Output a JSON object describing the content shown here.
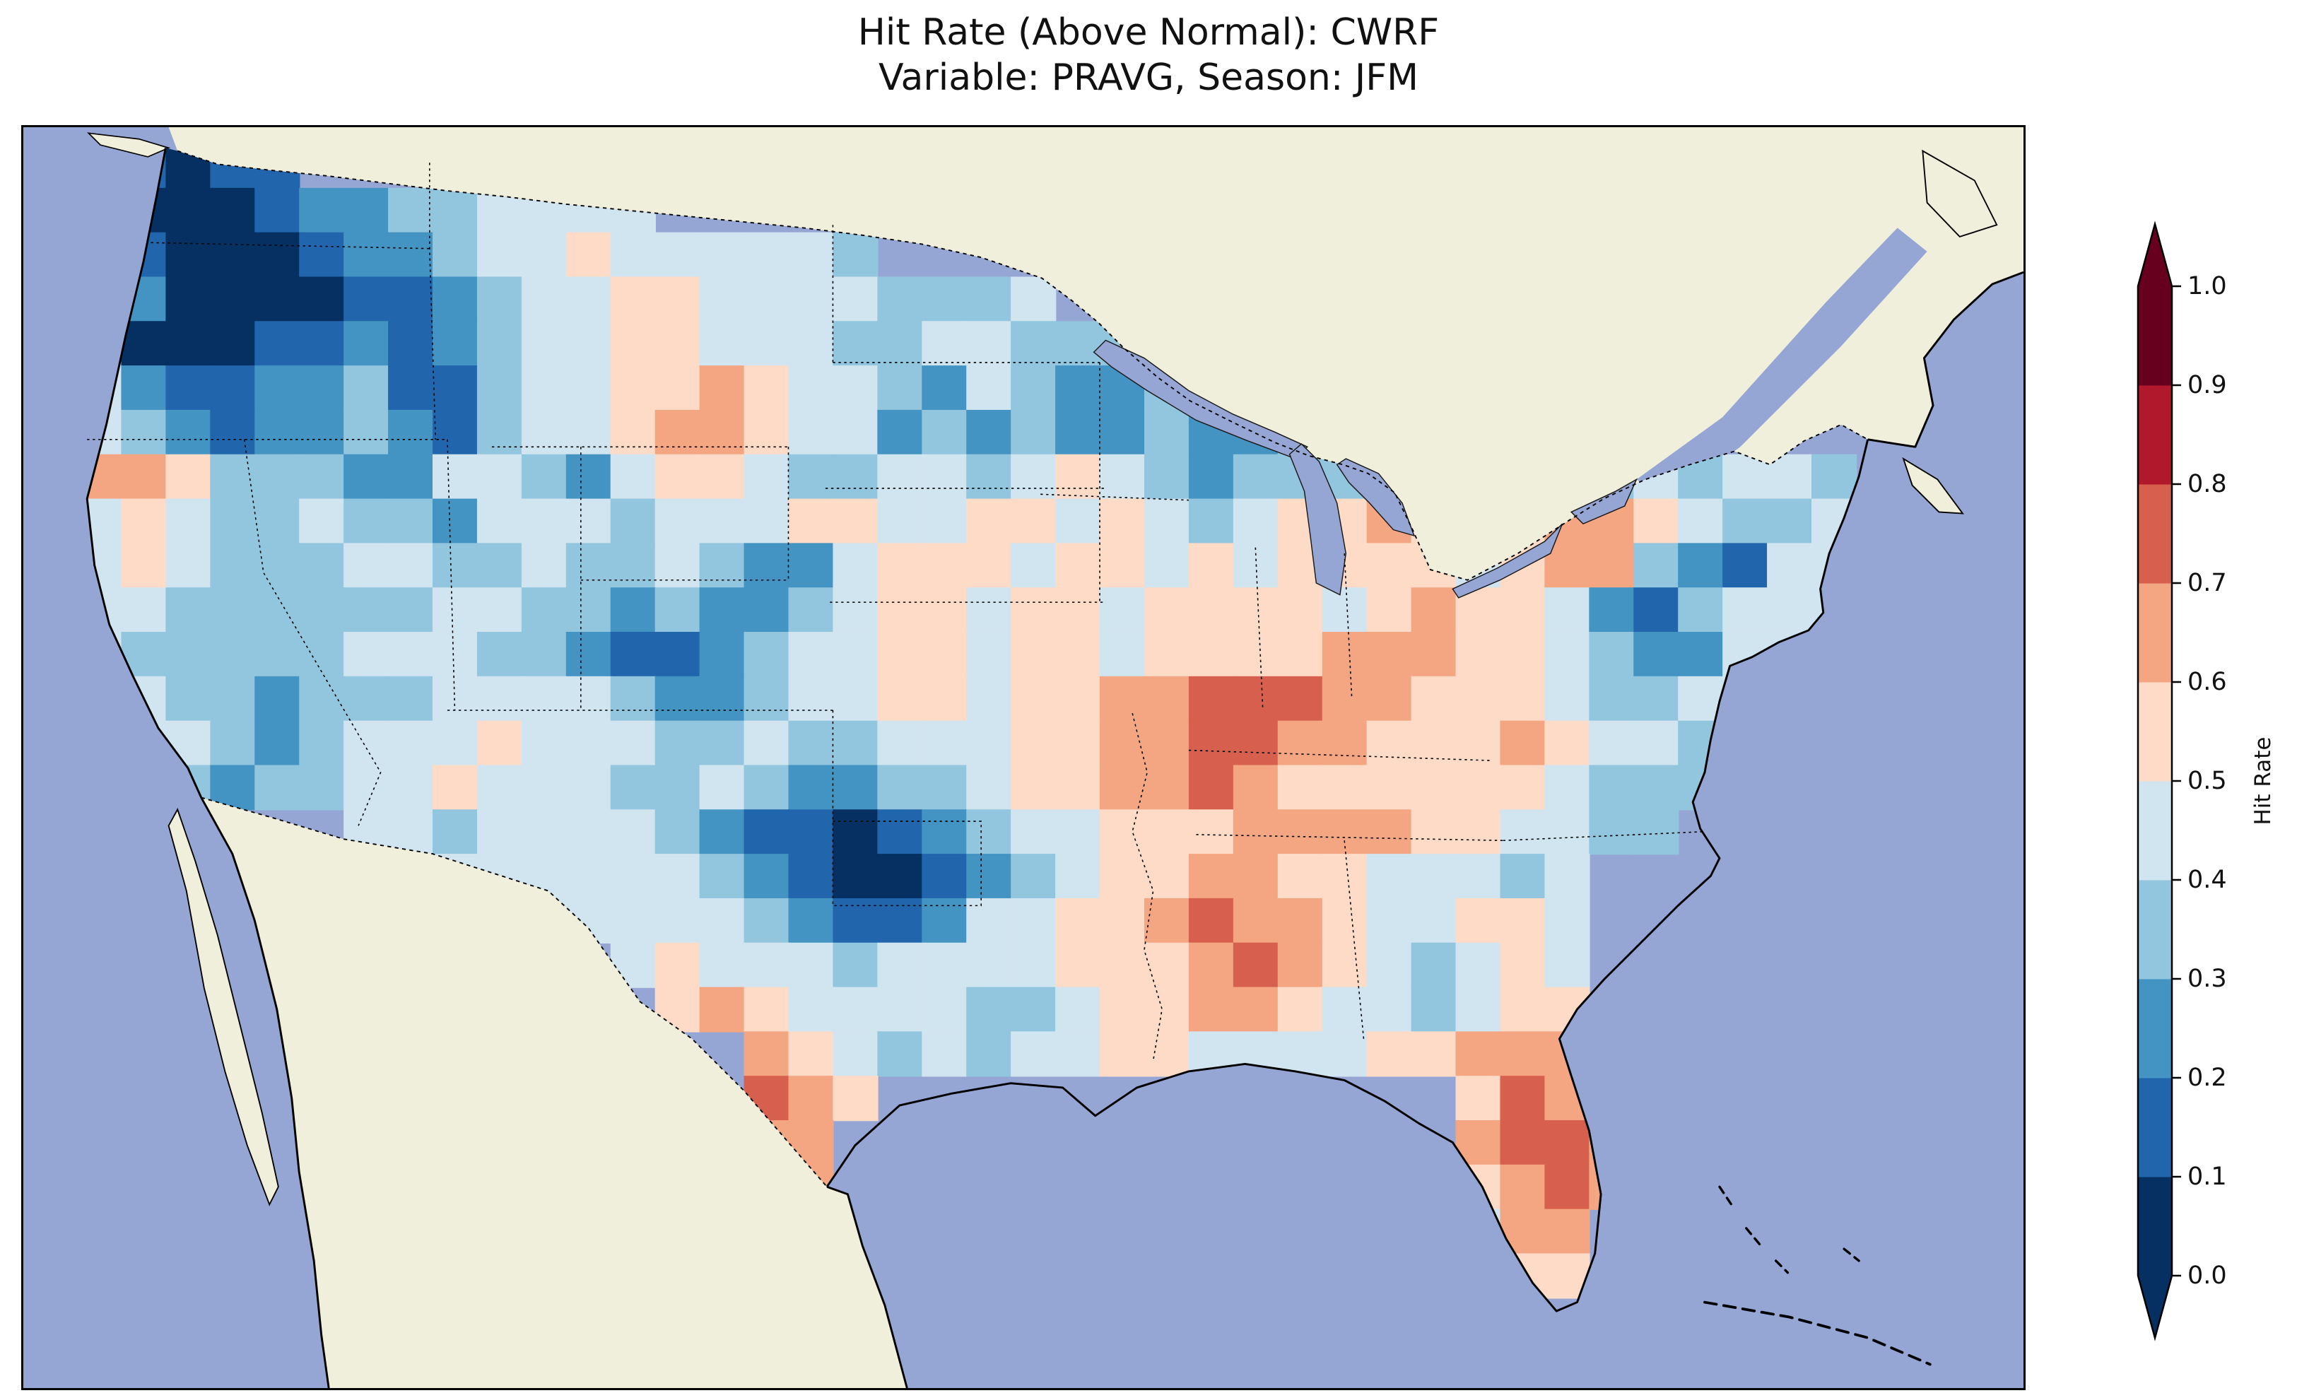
{
  "figure": {
    "title_line1": "Hit Rate (Above Normal): CWRF",
    "title_line2": "Variable: PRAVG, Season: JFM"
  },
  "chart_data": {
    "type": "heatmap",
    "title": "Hit Rate (Above Normal): CWRF",
    "subtitle": "Variable: PRAVG, Season: JFM",
    "metric": "Hit Rate (Above Normal)",
    "model": "CWRF",
    "variable": "PRAVG",
    "season": "JFM",
    "colorbar": {
      "label": "Hit Rate",
      "ticks": [
        "0.0",
        "0.1",
        "0.2",
        "0.3",
        "0.4",
        "0.5",
        "0.6",
        "0.7",
        "0.8",
        "0.9",
        "1.0"
      ],
      "bin_colors_low_to_high": [
        "#053061",
        "#2166ac",
        "#4393c3",
        "#92c5de",
        "#d1e5f0",
        "#fddbc7",
        "#f4a582",
        "#d6604d",
        "#b2182b",
        "#67001f"
      ],
      "extend_low_color": "#053061",
      "extend_high_color": "#67001f"
    },
    "map_colors": {
      "ocean": "#96a6d4",
      "land": "#efefdb",
      "coastline": "#000000"
    },
    "grid": {
      "cols": 40,
      "rows": 26,
      "value_encoding": "each char is a hit-rate decile: digit d -> ~0.05+0.1*d ; '.' = no data / outside CONUS",
      "rows_data": [
        ".1011",
        ".000122334444",
        ".10001223445444443",
        ".200001123445544443334",
        "300011212344554443344333",
        "42112231134455654432432232",
        "4321223213445665442323223223",
        "6653332244324554334434543233344554343443",
        "4543343324443444554455454345565456654334",
        "4543334433433432245554554545555456632144",
        "4433333344332322345545545555456554213444",
        "4333334443321123445545545555666554322445",
        "4433233344443223445545566777665554334455",
        "4443234445444334334445566776655565443344",
        "4432334454443343223345566765555554333455",
        "......443444432110123445556666554433",
        "......4344444432100123455665544434",
        "..........444443211244556766544554",
        "............4544434444555676543454",
        ".............565444433455665443455",
        "...............6543434455444455666",
        "...............765.............5766",
        "...............66..............6776",
        "................6..............5676",
        "...............................466",
        "................................55"
      ]
    }
  }
}
